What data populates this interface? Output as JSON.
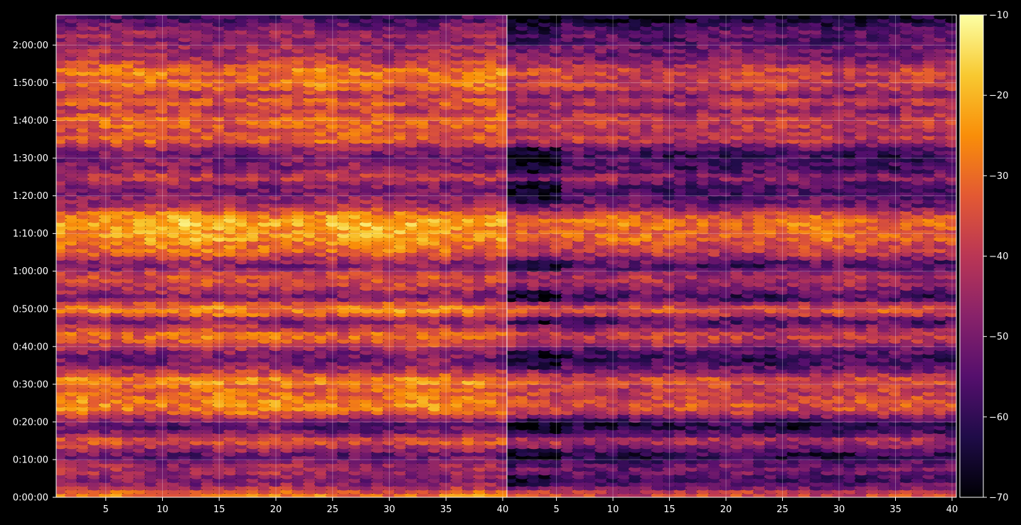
{
  "chart_data": {
    "type": "heatmap",
    "colormap": "inferno",
    "background": "#000000",
    "grid": true,
    "panels": [
      {
        "name": "",
        "x_ticks": [
          5,
          10,
          15,
          20,
          25,
          30,
          35,
          40
        ],
        "x_tick_labels": [
          "5",
          "10",
          "15",
          "20",
          "25",
          "30",
          "35",
          "40"
        ],
        "xlim": [
          1,
          40
        ]
      },
      {
        "name": "",
        "x_ticks": [
          5,
          10,
          15,
          20,
          25,
          30,
          35,
          40
        ],
        "x_tick_labels": [
          "5",
          "10",
          "15",
          "20",
          "25",
          "30",
          "35",
          "40"
        ],
        "xlim": [
          1,
          40
        ],
        "reference_level_offset_db": -8
      }
    ],
    "y_ticks": [
      "0:00:00",
      "0:10:00",
      "0:20:00",
      "0:30:00",
      "0:40:00",
      "0:50:00",
      "1:00:00",
      "1:10:00",
      "1:20:00",
      "1:30:00",
      "1:40:00",
      "1:50:00",
      "2:00:00"
    ],
    "y_tick_minutes": [
      0,
      10,
      20,
      30,
      40,
      50,
      60,
      70,
      80,
      90,
      100,
      110,
      120
    ],
    "ylim_minutes": [
      0,
      128
    ],
    "colorbar": {
      "ticks": [
        "-10",
        "-20",
        "-30",
        "-40",
        "-50",
        "-60",
        "-70"
      ],
      "vmin": -70,
      "vmax": -10
    },
    "row_profile_minutes": [
      1,
      3,
      5,
      7,
      9,
      11,
      13,
      15,
      17,
      19,
      21,
      23,
      25,
      27,
      29,
      31,
      33,
      35,
      37,
      39,
      41,
      43,
      45,
      47,
      49,
      51,
      53,
      55,
      57,
      59,
      61,
      63,
      65,
      67,
      69,
      71,
      73,
      75,
      77,
      79,
      81,
      83,
      85,
      87,
      89,
      91,
      93,
      95,
      97,
      99,
      101,
      103,
      105,
      107,
      109,
      111,
      113,
      115,
      117,
      119,
      121,
      123,
      125,
      127
    ],
    "row_profile_db": [
      -28,
      -46,
      -50,
      -42,
      -46,
      -55,
      -44,
      -32,
      -48,
      -56,
      -44,
      -28,
      -26,
      -30,
      -32,
      -24,
      -38,
      -48,
      -52,
      -46,
      -35,
      -28,
      -40,
      -50,
      -26,
      -30,
      -52,
      -42,
      -36,
      -34,
      -50,
      -44,
      -30,
      -28,
      -22,
      -24,
      -20,
      -26,
      -42,
      -46,
      -50,
      -48,
      -36,
      -50,
      -48,
      -52,
      -44,
      -30,
      -36,
      -30,
      -32,
      -40,
      -30,
      -42,
      -28,
      -32,
      -27,
      -36,
      -44,
      -42,
      -48,
      -44,
      -50,
      -58
    ]
  }
}
